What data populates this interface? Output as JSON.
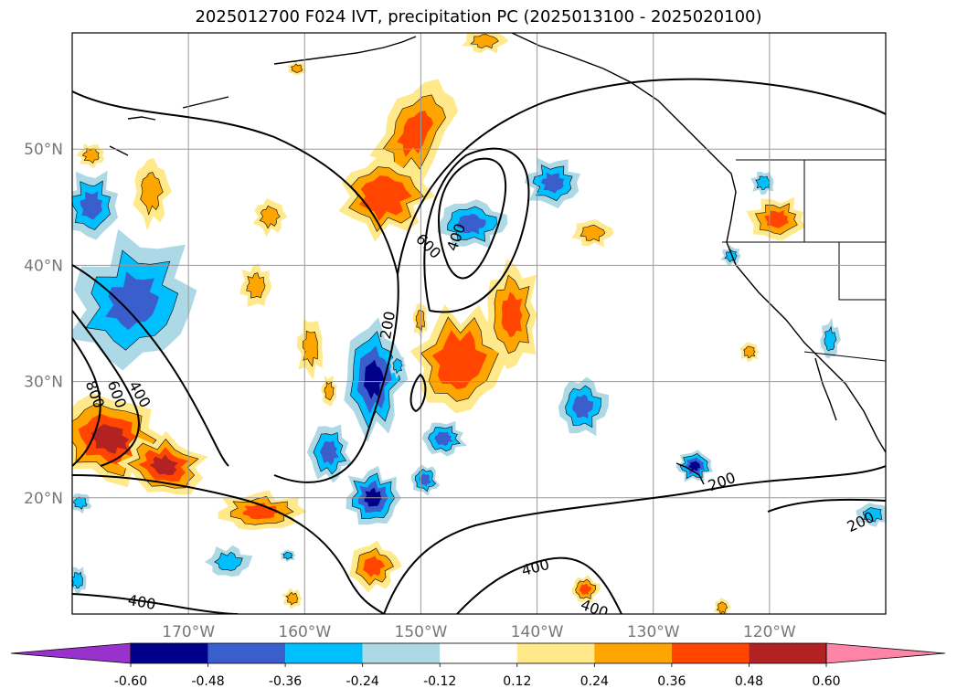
{
  "title": "2025012700 F024 IVT, precipitation PC (2025013100 - 2025020100)",
  "chart_data": {
    "type": "heatmap",
    "title": "2025012700 F024 IVT, precipitation PC (2025013100 - 2025020100)",
    "projection": "cylindrical lat/lon map, North Pacific",
    "lon_range": [
      -180,
      -110
    ],
    "lat_range": [
      10,
      60
    ],
    "x_ticks": [
      "170°W",
      "160°W",
      "150°W",
      "140°W",
      "130°W",
      "120°W"
    ],
    "x_tick_values": [
      -170,
      -160,
      -150,
      -140,
      -130,
      -120
    ],
    "y_ticks": [
      "20°N",
      "30°N",
      "40°N",
      "50°N"
    ],
    "y_tick_values": [
      20,
      30,
      40,
      50
    ],
    "grid": true,
    "colorbar": {
      "orientation": "horizontal",
      "extend": "both",
      "ticks": [
        "-0.60",
        "-0.48",
        "-0.36",
        "-0.24",
        "-0.12",
        "0.12",
        "0.24",
        "0.36",
        "0.48",
        "0.60"
      ],
      "levels": [
        -0.6,
        -0.48,
        -0.36,
        -0.24,
        -0.12,
        0.12,
        0.24,
        0.36,
        0.48,
        0.6
      ],
      "colors": [
        "#9932cc",
        "#00008b",
        "#3a5fcd",
        "#00bfff",
        "#add8e6",
        "#ffffff",
        "#ffe98a",
        "#ffa500",
        "#ff4500",
        "#b22222",
        "#ff85a8"
      ]
    },
    "contour_labels": [
      "800",
      "600",
      "400",
      "200",
      "600",
      "400",
      "200",
      "200",
      "400",
      "400",
      "400"
    ],
    "contour_levels": [
      200,
      400,
      600,
      800
    ]
  }
}
